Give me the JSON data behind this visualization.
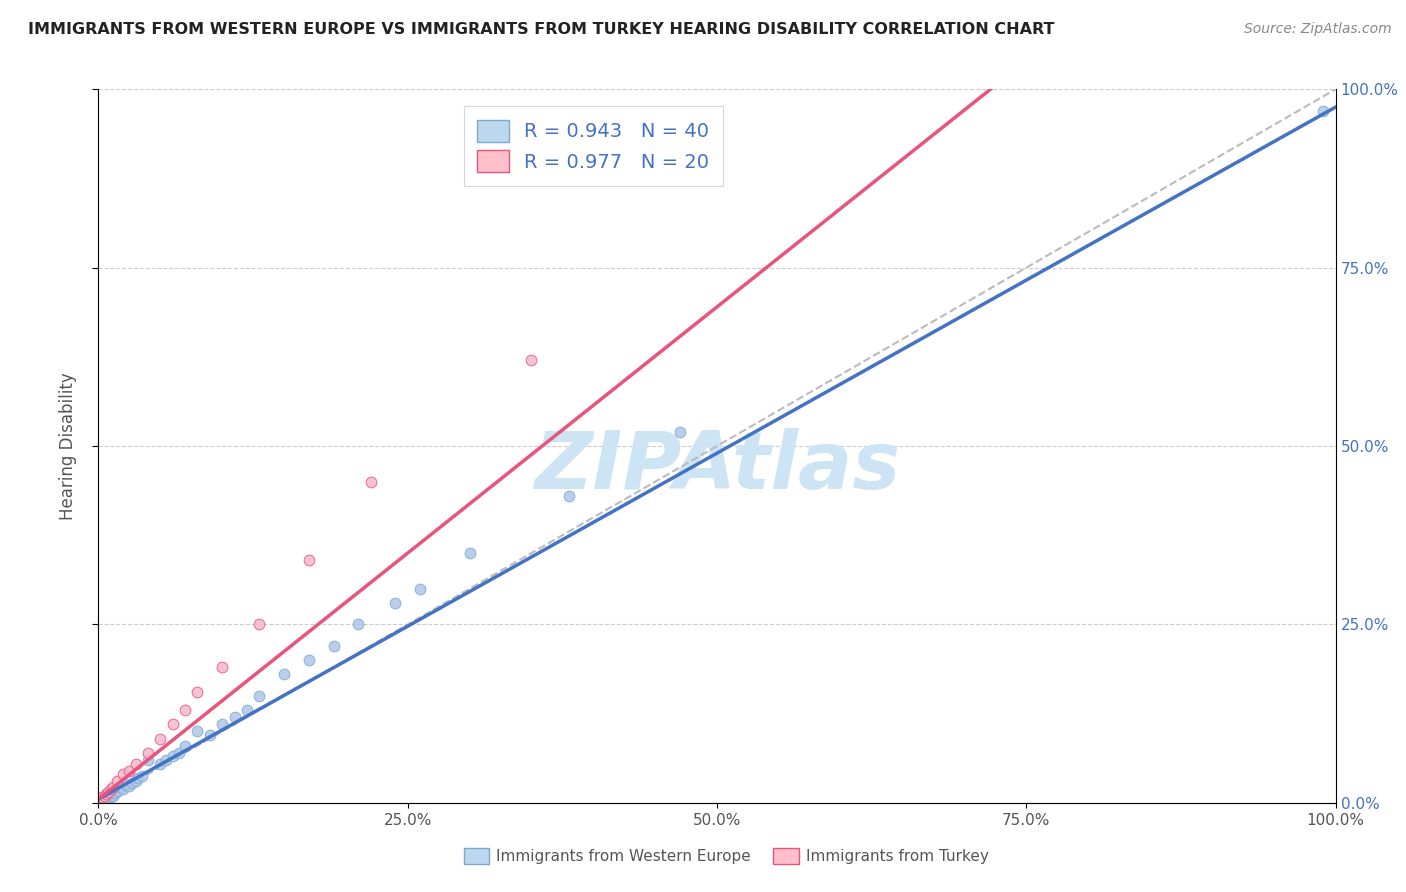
{
  "title": "IMMIGRANTS FROM WESTERN EUROPE VS IMMIGRANTS FROM TURKEY HEARING DISABILITY CORRELATION CHART",
  "source": "Source: ZipAtlas.com",
  "ylabel": "Hearing Disability",
  "x_bottom_label_blue": "Immigrants from Western Europe",
  "x_bottom_label_pink": "Immigrants from Turkey",
  "xlim": [
    0,
    1
  ],
  "ylim": [
    0,
    1
  ],
  "xtick_labels": [
    "0.0%",
    "25.0%",
    "50.0%",
    "75.0%",
    "100.0%"
  ],
  "xtick_vals": [
    0,
    0.25,
    0.5,
    0.75,
    1.0
  ],
  "ytick_labels": [
    "0.0%",
    "25.0%",
    "50.0%",
    "75.0%",
    "100.0%"
  ],
  "ytick_vals": [
    0,
    0.25,
    0.5,
    0.75,
    1.0
  ],
  "blue_line_color": "#4472c4",
  "blue_scatter_face": "#aec6e8",
  "blue_scatter_edge": "#7aaad0",
  "pink_line_color": "#e8547a",
  "pink_scatter_face": "#f4b8cc",
  "pink_scatter_edge": "#e8547a",
  "ref_line_color": "#bbbbbb",
  "R_blue": 0.943,
  "N_blue": 40,
  "R_pink": 0.977,
  "N_pink": 20,
  "legend_text_color": "#4472c4",
  "watermark": "ZIPAtlas",
  "watermark_color": "#cde4f5",
  "background_color": "#ffffff",
  "grid_color": "#cccccc",
  "blue_legend_face": "#bdd7ee",
  "blue_legend_edge": "#7aaad0",
  "pink_legend_face": "#ffc0cb",
  "pink_legend_edge": "#e8547a",
  "blue_line_slope": 0.97,
  "blue_line_intercept": 0.005,
  "pink_line_slope": 1.38,
  "pink_line_intercept": 0.005,
  "blue_scatter_x": [
    0.005,
    0.007,
    0.008,
    0.009,
    0.01,
    0.01,
    0.012,
    0.013,
    0.015,
    0.016,
    0.018,
    0.02,
    0.022,
    0.025,
    0.027,
    0.03,
    0.032,
    0.035,
    0.04,
    0.05,
    0.055,
    0.06,
    0.065,
    0.07,
    0.08,
    0.09,
    0.1,
    0.11,
    0.12,
    0.13,
    0.15,
    0.17,
    0.19,
    0.21,
    0.24,
    0.26,
    0.3,
    0.38,
    0.47,
    0.99
  ],
  "blue_scatter_y": [
    0.005,
    0.01,
    0.007,
    0.012,
    0.008,
    0.015,
    0.01,
    0.014,
    0.018,
    0.016,
    0.022,
    0.02,
    0.025,
    0.024,
    0.028,
    0.03,
    0.035,
    0.038,
    0.06,
    0.055,
    0.06,
    0.065,
    0.07,
    0.08,
    0.1,
    0.095,
    0.11,
    0.12,
    0.13,
    0.15,
    0.18,
    0.2,
    0.22,
    0.25,
    0.28,
    0.3,
    0.35,
    0.43,
    0.52,
    0.97
  ],
  "pink_scatter_x": [
    0.003,
    0.005,
    0.006,
    0.008,
    0.01,
    0.012,
    0.015,
    0.02,
    0.025,
    0.03,
    0.04,
    0.05,
    0.06,
    0.07,
    0.08,
    0.1,
    0.13,
    0.17,
    0.22,
    0.35
  ],
  "pink_scatter_y": [
    0.008,
    0.01,
    0.012,
    0.015,
    0.02,
    0.022,
    0.03,
    0.04,
    0.045,
    0.055,
    0.07,
    0.09,
    0.11,
    0.13,
    0.155,
    0.19,
    0.25,
    0.34,
    0.45,
    0.62
  ]
}
